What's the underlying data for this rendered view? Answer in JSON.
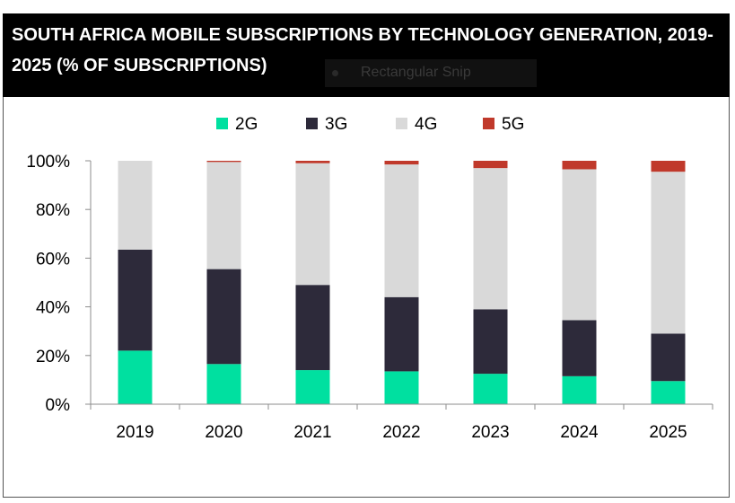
{
  "title": "SOUTH AFRICA MOBILE SUBSCRIPTIONS BY TECHNOLOGY GENERATION, 2019-2025 (% OF SUBSCRIPTIONS)",
  "overlay": {
    "snip_label": "Rectangular Snip",
    "snip_icon": "dot-icon"
  },
  "chart_data": {
    "type": "bar",
    "stacked": true,
    "categories": [
      "2019",
      "2020",
      "2021",
      "2022",
      "2023",
      "2024",
      "2025"
    ],
    "ylim": [
      0,
      100
    ],
    "yticks": [
      "0%",
      "20%",
      "40%",
      "60%",
      "80%",
      "100%"
    ],
    "legend_position": "top",
    "grid": false,
    "series": [
      {
        "name": "2G",
        "color": "#00E0A0",
        "values": [
          22,
          16.5,
          14,
          13.5,
          12.5,
          11.5,
          9.5
        ]
      },
      {
        "name": "3G",
        "color": "#2D2A3A",
        "values": [
          41.5,
          39,
          35,
          30.5,
          26.5,
          23,
          19.5
        ]
      },
      {
        "name": "4G",
        "color": "#D9D9D9",
        "values": [
          36.5,
          44,
          50,
          54.5,
          58,
          62,
          66.5
        ]
      },
      {
        "name": "5G",
        "color": "#C0392B",
        "values": [
          0,
          0.5,
          1,
          1.5,
          3,
          3.5,
          4.5
        ]
      }
    ]
  }
}
